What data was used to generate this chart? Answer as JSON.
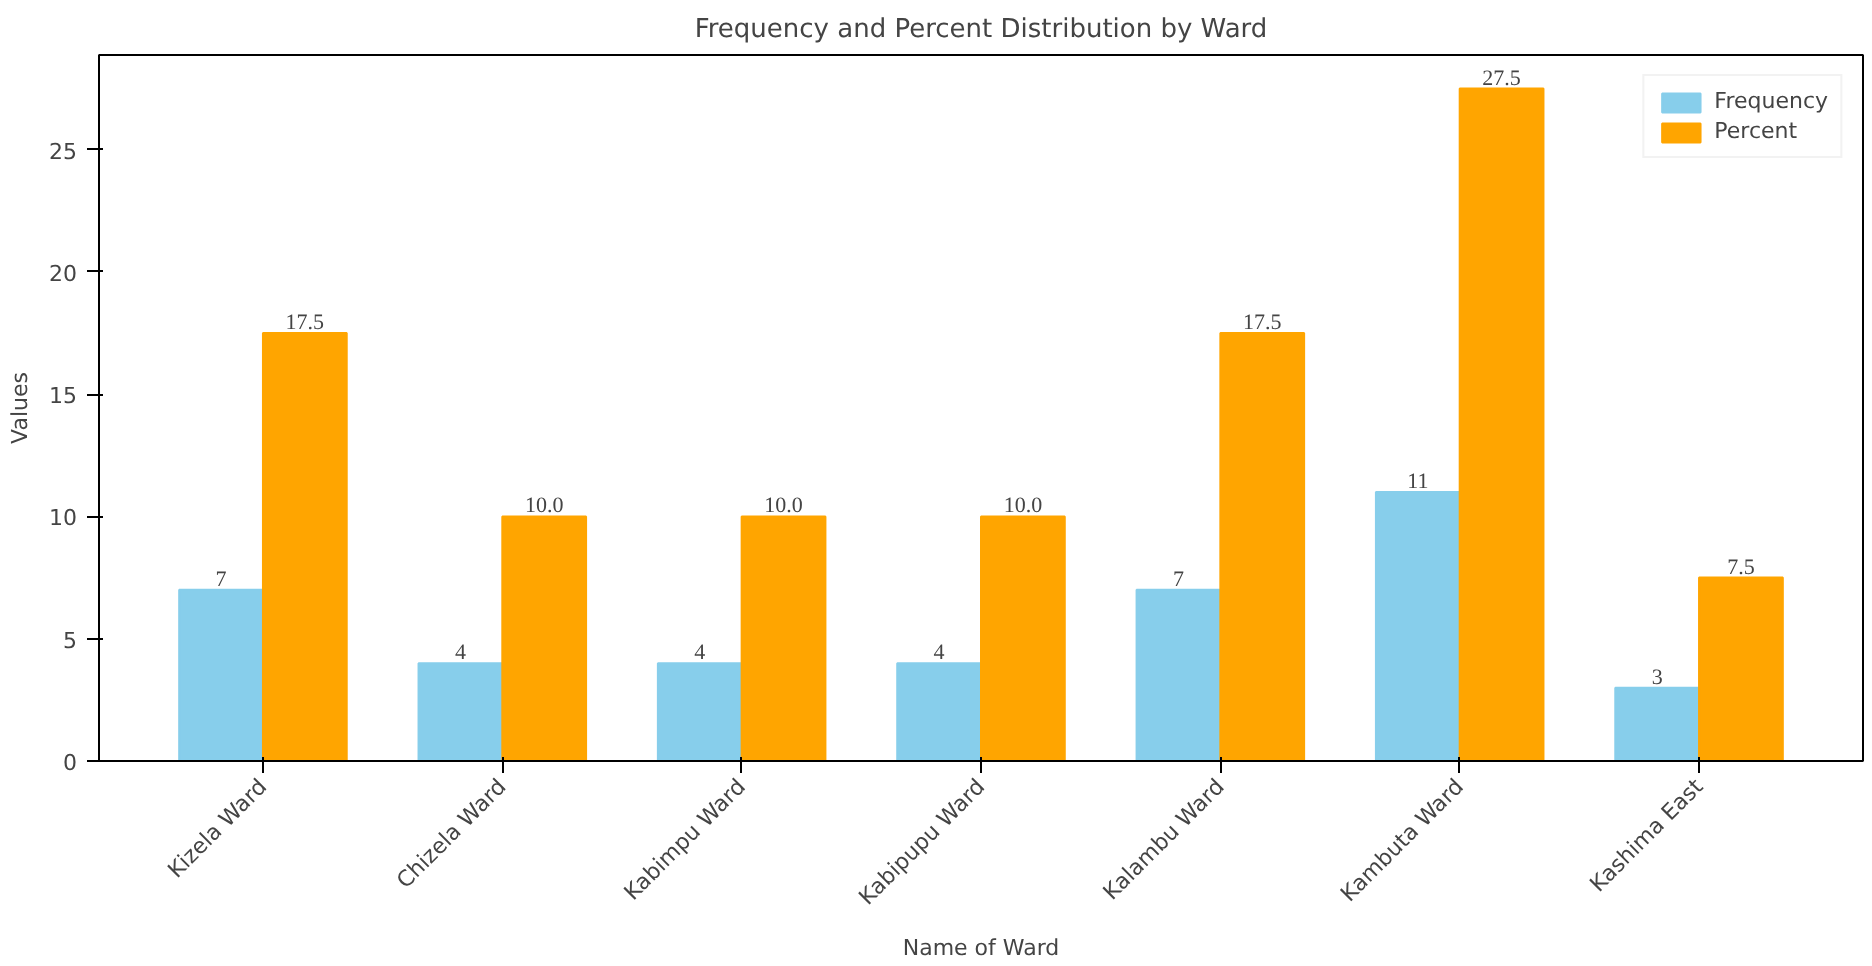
{
  "chart_data": {
    "type": "bar",
    "title": "Frequency and Percent Distribution by Ward",
    "xlabel": "Name of Ward",
    "ylabel": "Values",
    "categories": [
      "Kizela Ward",
      "Chizela Ward",
      "Kabimpu Ward",
      "Kabipupu Ward",
      "Kalambu Ward",
      "Kambuta Ward",
      "Kashima East"
    ],
    "series": [
      {
        "name": "Frequency",
        "color": "#87ceeb",
        "values": [
          7,
          4,
          4,
          4,
          7,
          11,
          3
        ],
        "value_labels": [
          "7",
          "4",
          "4",
          "4",
          "7",
          "11",
          "3"
        ]
      },
      {
        "name": "Percent",
        "color": "#ffa500",
        "values": [
          17.5,
          10.0,
          10.0,
          10.0,
          17.5,
          27.5,
          7.5
        ],
        "value_labels": [
          "17.5",
          "10.0",
          "10.0",
          "10.0",
          "17.5",
          "27.5",
          "7.5"
        ]
      }
    ],
    "ylim": [
      0,
      28.875
    ],
    "yticks": [
      0,
      5,
      10,
      15,
      20,
      25
    ],
    "grid": false,
    "legend": "top right"
  }
}
